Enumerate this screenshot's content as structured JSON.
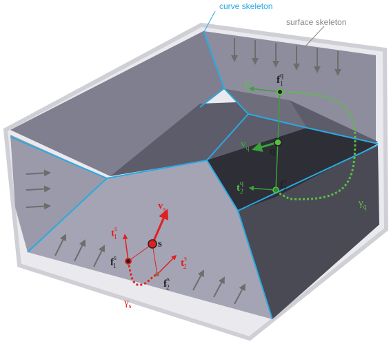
{
  "labels": {
    "curve_skeleton": "curve skeleton",
    "surface_skeleton": "surface skeleton"
  },
  "symbols": [
    {
      "base": "f",
      "sub": "1",
      "sup": "q"
    },
    {
      "base": "t",
      "sub": "1",
      "sup": "q"
    },
    {
      "base": "v",
      "sub": "q"
    },
    {
      "base": "q"
    },
    {
      "base": "f",
      "sub": "2",
      "sup": "q"
    },
    {
      "base": "t",
      "sub": "2",
      "sup": "q"
    },
    {
      "base": "γ",
      "sub": "q"
    },
    {
      "base": "v",
      "sub": "s"
    },
    {
      "base": "s"
    },
    {
      "base": "t",
      "sub": "1",
      "sup": "s"
    },
    {
      "base": "f",
      "sub": "1",
      "sup": "s"
    },
    {
      "base": "t",
      "sub": "2",
      "sup": "s"
    },
    {
      "base": "f",
      "sub": "2",
      "sup": "s"
    },
    {
      "base": "γ",
      "sub": "s"
    }
  ]
}
